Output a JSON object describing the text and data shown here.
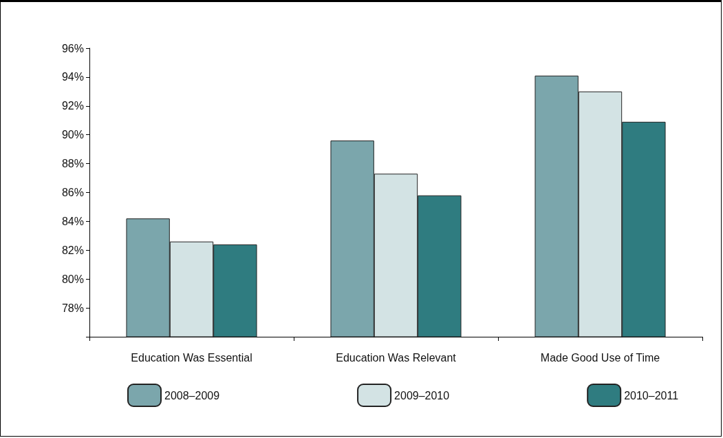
{
  "chart_data": {
    "type": "bar",
    "categories": [
      "Education Was Essential",
      "Education Was Relevant",
      "Made Good Use of Time"
    ],
    "series": [
      {
        "name": "2008–2009",
        "color": "#7ba6ac",
        "values": [
          84.2,
          89.6,
          94.1
        ]
      },
      {
        "name": "2009–2010",
        "color": "#d3e3e4",
        "values": [
          82.6,
          87.3,
          93.0
        ]
      },
      {
        "name": "2010–2011",
        "color": "#2f7c80",
        "values": [
          82.4,
          85.8,
          90.9
        ]
      }
    ],
    "ylim": [
      76,
      96
    ],
    "yticks": [
      {
        "value": 76,
        "label": null
      },
      {
        "value": 78,
        "label": "78%"
      },
      {
        "value": 80,
        "label": "80%"
      },
      {
        "value": 82,
        "label": "82%"
      },
      {
        "value": 84,
        "label": "84%"
      },
      {
        "value": 86,
        "label": "86%"
      },
      {
        "value": 88,
        "label": "88%"
      },
      {
        "value": 90,
        "label": "90%"
      },
      {
        "value": 92,
        "label": "92%"
      },
      {
        "value": 94,
        "label": "94%"
      },
      {
        "value": 96,
        "label": "96%"
      }
    ],
    "grid": false,
    "legend": "bottom"
  }
}
